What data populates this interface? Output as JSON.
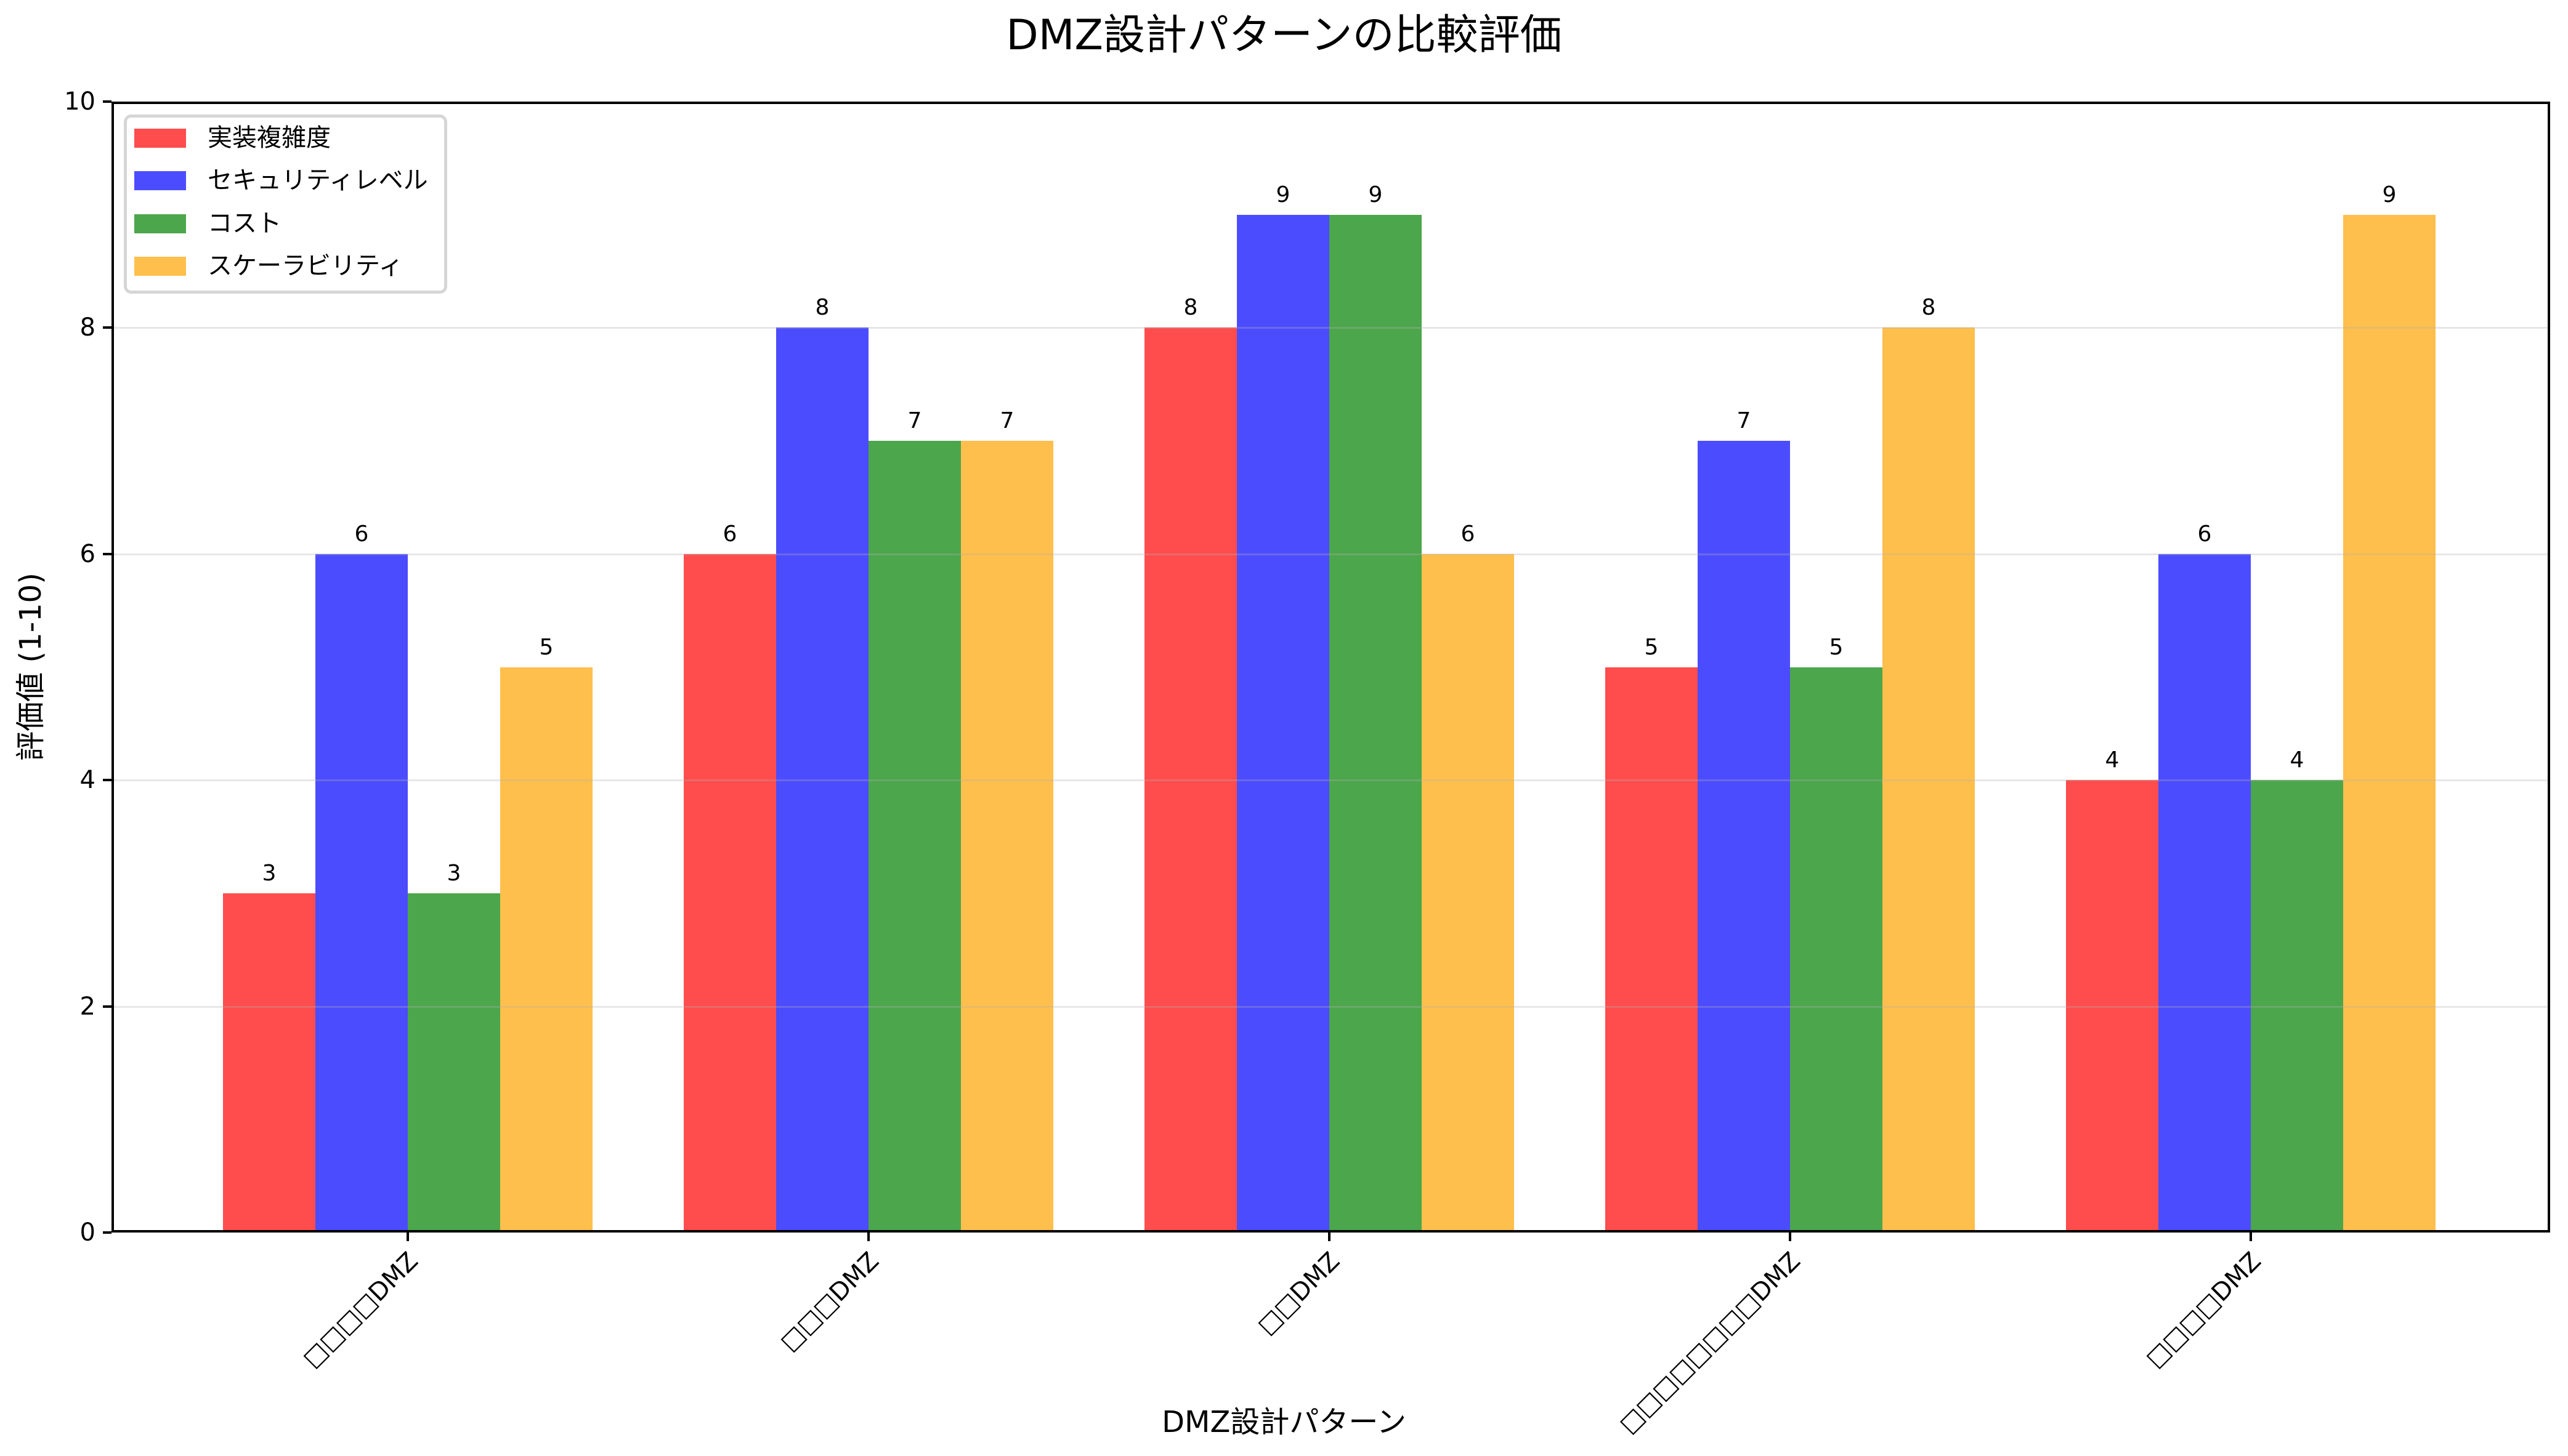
{
  "chart_data": {
    "type": "bar",
    "title": "DMZ設計パターンの比較評価",
    "xlabel": "DMZ設計パターン",
    "ylabel": "評価値 (1-10)",
    "ylim": [
      0,
      10
    ],
    "yticks": [
      "0",
      "2",
      "4",
      "6",
      "8",
      "10"
    ],
    "grid": "y",
    "legend_position": "upper left",
    "categories": [
      "□□□□DMZ",
      "□□□DMZ",
      "□□DMZ",
      "□□□□□□□□DMZ",
      "□□□□DMZ"
    ],
    "series": [
      {
        "name": "実装複雑度",
        "color": "#ff4c4c",
        "values": [
          3,
          6,
          8,
          5,
          4
        ]
      },
      {
        "name": "セキュリティレベル",
        "color": "#4c4cff",
        "values": [
          6,
          8,
          9,
          7,
          6
        ]
      },
      {
        "name": "コスト",
        "color": "#4ca64c",
        "values": [
          3,
          7,
          9,
          5,
          4
        ]
      },
      {
        "name": "スケーラビリティ",
        "color": "#ffbf4c",
        "values": [
          5,
          7,
          6,
          8,
          9
        ]
      }
    ]
  }
}
